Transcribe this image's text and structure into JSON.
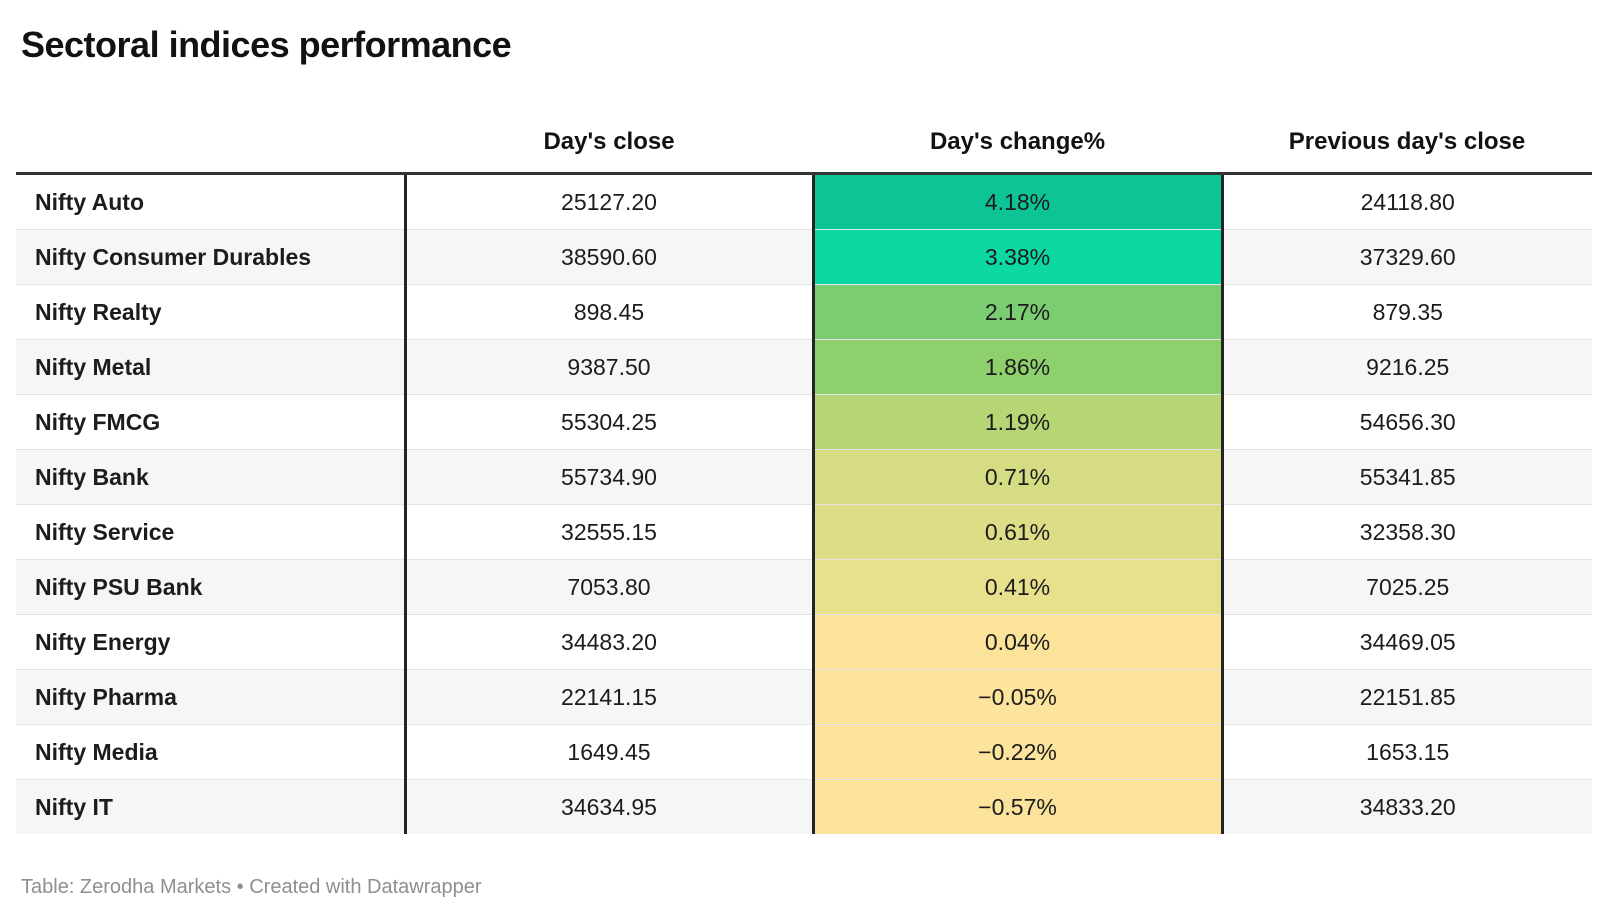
{
  "title": "Sectoral indices performance",
  "table": {
    "columns": [
      "",
      "Day's close",
      "Day's change%",
      "Previous day's close"
    ],
    "rows": [
      {
        "label": "Nifty Auto",
        "close": "25127.20",
        "change": "4.18%",
        "prev": "24118.80",
        "color": "#0cc496"
      },
      {
        "label": "Nifty Consumer Durables",
        "close": "38590.60",
        "change": "3.38%",
        "prev": "37329.60",
        "color": "#0bd8a2"
      },
      {
        "label": "Nifty Realty",
        "close": "898.45",
        "change": "2.17%",
        "prev": "879.35",
        "color": "#7ccd72"
      },
      {
        "label": "Nifty Metal",
        "close": "9387.50",
        "change": "1.86%",
        "prev": "9216.25",
        "color": "#8ed06c"
      },
      {
        "label": "Nifty FMCG",
        "close": "55304.25",
        "change": "1.19%",
        "prev": "54656.30",
        "color": "#b6d575"
      },
      {
        "label": "Nifty Bank",
        "close": "55734.90",
        "change": "0.71%",
        "prev": "55341.85",
        "color": "#d6dc83"
      },
      {
        "label": "Nifty Service",
        "close": "32555.15",
        "change": "0.61%",
        "prev": "32358.30",
        "color": "#dcdd86"
      },
      {
        "label": "Nifty PSU Bank",
        "close": "7053.80",
        "change": "0.41%",
        "prev": "7025.25",
        "color": "#e7e08d"
      },
      {
        "label": "Nifty Energy",
        "close": "34483.20",
        "change": "0.04%",
        "prev": "34469.05",
        "color": "#fbe39a"
      },
      {
        "label": "Nifty Pharma",
        "close": "22141.15",
        "change": "−0.05%",
        "prev": "22151.85",
        "color": "#fce49c"
      },
      {
        "label": "Nifty Media",
        "close": "1649.45",
        "change": "−0.22%",
        "prev": "1653.15",
        "color": "#fce49d"
      },
      {
        "label": "Nifty IT",
        "close": "34634.95",
        "change": "−0.57%",
        "prev": "34833.20",
        "color": "#fbe39b"
      }
    ]
  },
  "footer": {
    "text": "Table: Zerodha Markets • Created with Datawrapper"
  },
  "colors": {
    "top_border": "#333333",
    "column_divider": "#242424",
    "row_divider": "#e4e4e4",
    "zebra_stripe": "#f6f6f6",
    "footer_text": "#8f8f8f",
    "heat_max_positive": "#0cc496",
    "heat_neutral": "#e7e08d",
    "heat_negative": "#fbe39b"
  },
  "chart_data": {
    "type": "table",
    "title": "Sectoral indices performance",
    "columns": [
      "Day's close",
      "Day's change%",
      "Previous day's close"
    ],
    "categories": [
      "Nifty Auto",
      "Nifty Consumer Durables",
      "Nifty Realty",
      "Nifty Metal",
      "Nifty FMCG",
      "Nifty Bank",
      "Nifty Service",
      "Nifty PSU Bank",
      "Nifty Energy",
      "Nifty Pharma",
      "Nifty Media",
      "Nifty IT"
    ],
    "series": [
      {
        "name": "Day's close",
        "values": [
          25127.2,
          38590.6,
          898.45,
          9387.5,
          55304.25,
          55734.9,
          32555.15,
          7053.8,
          34483.2,
          22141.15,
          1649.45,
          34634.95
        ]
      },
      {
        "name": "Day's change%",
        "values": [
          4.18,
          3.38,
          2.17,
          1.86,
          1.19,
          0.71,
          0.61,
          0.41,
          0.04,
          -0.05,
          -0.22,
          -0.57
        ]
      },
      {
        "name": "Previous day's close",
        "values": [
          24118.8,
          37329.6,
          879.35,
          9216.25,
          54656.3,
          55341.85,
          32358.3,
          7025.25,
          34469.05,
          22151.85,
          1653.15,
          34833.2
        ]
      }
    ],
    "layout_hints": {
      "heatmap_column": "Day's change%",
      "heatmap_scale": "teal-green (high positive) through yellow-green to pale yellow (negative)",
      "zebra_rows": true,
      "sorted_by": "Day's change% descending"
    },
    "source": "Zerodha Markets",
    "tool": "Datawrapper"
  }
}
